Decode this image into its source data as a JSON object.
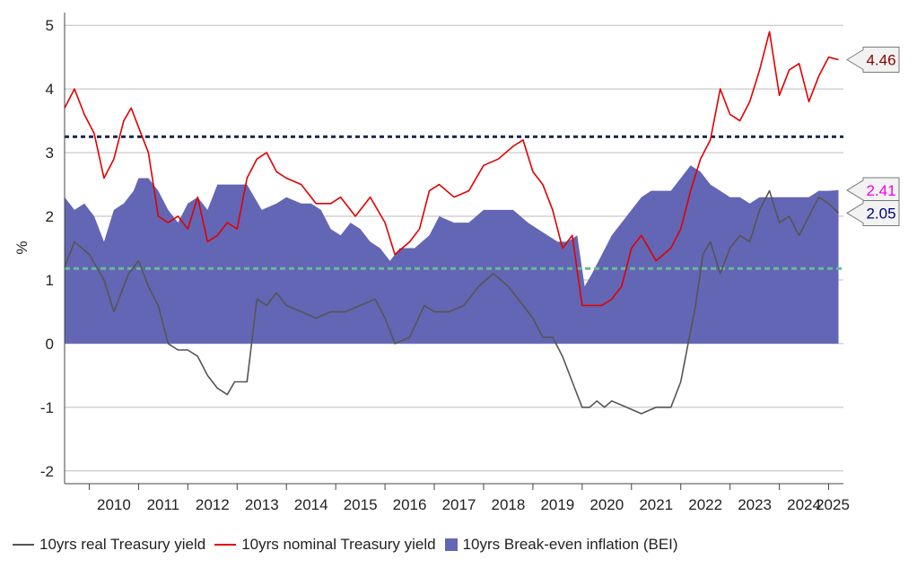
{
  "chart_data": {
    "type": "line",
    "ylabel": "%",
    "xlabel": "",
    "ylim": [
      -2.2,
      5.2
    ],
    "yticks": [
      -2,
      -1,
      0,
      1,
      2,
      3,
      4,
      5
    ],
    "xlim": [
      2009.5,
      2025.3
    ],
    "x_tick_labels": [
      "2010",
      "2011",
      "2012",
      "2013",
      "2014",
      "2015",
      "2016",
      "2017",
      "2018",
      "2019",
      "2020",
      "2021",
      "2022",
      "2023",
      "2024",
      "2025"
    ],
    "grid": "horizontal",
    "legend_position": "bottom",
    "series": [
      {
        "name": "10yrs real Treasury yield",
        "kind": "line",
        "color": "#555555",
        "x": [
          2009.5,
          2009.7,
          2010.0,
          2010.3,
          2010.5,
          2010.8,
          2011.0,
          2011.2,
          2011.4,
          2011.6,
          2011.8,
          2012.0,
          2012.2,
          2012.4,
          2012.6,
          2012.8,
          2012.95,
          2013.2,
          2013.4,
          2013.6,
          2013.8,
          2014.0,
          2014.3,
          2014.6,
          2014.9,
          2015.2,
          2015.5,
          2015.8,
          2016.0,
          2016.2,
          2016.5,
          2016.8,
          2017.0,
          2017.3,
          2017.6,
          2017.9,
          2018.2,
          2018.5,
          2018.8,
          2019.0,
          2019.2,
          2019.4,
          2019.6,
          2019.8,
          2020.0,
          2020.15,
          2020.3,
          2020.45,
          2020.6,
          2020.9,
          2021.2,
          2021.5,
          2021.8,
          2022.0,
          2022.15,
          2022.3,
          2022.45,
          2022.6,
          2022.8,
          2023.0,
          2023.2,
          2023.4,
          2023.6,
          2023.8,
          2024.0,
          2024.2,
          2024.4,
          2024.6,
          2024.8,
          2025.0,
          2025.2
        ],
        "values": [
          1.2,
          1.6,
          1.4,
          1.0,
          0.5,
          1.1,
          1.3,
          0.9,
          0.6,
          0.0,
          -0.1,
          -0.1,
          -0.2,
          -0.5,
          -0.7,
          -0.8,
          -0.6,
          -0.6,
          0.7,
          0.6,
          0.8,
          0.6,
          0.5,
          0.4,
          0.5,
          0.5,
          0.6,
          0.7,
          0.4,
          0.0,
          0.1,
          0.6,
          0.5,
          0.5,
          0.6,
          0.9,
          1.1,
          0.9,
          0.6,
          0.4,
          0.1,
          0.1,
          -0.2,
          -0.6,
          -1.0,
          -1.0,
          -0.9,
          -1.0,
          -0.9,
          -1.0,
          -1.1,
          -1.0,
          -1.0,
          -0.6,
          0.0,
          0.6,
          1.4,
          1.6,
          1.1,
          1.5,
          1.7,
          1.6,
          2.1,
          2.4,
          1.9,
          2.0,
          1.7,
          2.0,
          2.3,
          2.2,
          2.05
        ]
      },
      {
        "name": "10yrs nominal Treasury yield",
        "kind": "line",
        "color": "#e00000",
        "x": [
          2009.5,
          2009.7,
          2009.9,
          2010.1,
          2010.3,
          2010.5,
          2010.7,
          2010.85,
          2011.0,
          2011.2,
          2011.4,
          2011.6,
          2011.8,
          2012.0,
          2012.2,
          2012.4,
          2012.6,
          2012.8,
          2013.0,
          2013.2,
          2013.4,
          2013.6,
          2013.8,
          2014.0,
          2014.3,
          2014.6,
          2014.9,
          2015.1,
          2015.4,
          2015.7,
          2016.0,
          2016.2,
          2016.5,
          2016.7,
          2016.9,
          2017.1,
          2017.4,
          2017.7,
          2018.0,
          2018.3,
          2018.6,
          2018.8,
          2019.0,
          2019.2,
          2019.4,
          2019.6,
          2019.8,
          2020.0,
          2020.2,
          2020.4,
          2020.6,
          2020.8,
          2021.0,
          2021.2,
          2021.5,
          2021.8,
          2022.0,
          2022.2,
          2022.4,
          2022.6,
          2022.8,
          2023.0,
          2023.2,
          2023.4,
          2023.6,
          2023.8,
          2024.0,
          2024.2,
          2024.4,
          2024.6,
          2024.8,
          2025.0,
          2025.2
        ],
        "values": [
          3.7,
          4.0,
          3.6,
          3.3,
          2.6,
          2.9,
          3.5,
          3.7,
          3.4,
          3.0,
          2.0,
          1.9,
          2.0,
          1.8,
          2.3,
          1.6,
          1.7,
          1.9,
          1.8,
          2.6,
          2.9,
          3.0,
          2.7,
          2.6,
          2.5,
          2.2,
          2.2,
          2.3,
          2.0,
          2.3,
          1.9,
          1.4,
          1.6,
          1.8,
          2.4,
          2.5,
          2.3,
          2.4,
          2.8,
          2.9,
          3.1,
          3.2,
          2.7,
          2.5,
          2.1,
          1.5,
          1.7,
          0.6,
          0.6,
          0.6,
          0.7,
          0.9,
          1.5,
          1.7,
          1.3,
          1.5,
          1.8,
          2.4,
          2.9,
          3.2,
          4.0,
          3.6,
          3.5,
          3.8,
          4.3,
          4.9,
          3.9,
          4.3,
          4.4,
          3.8,
          4.2,
          4.5,
          4.46
        ]
      },
      {
        "name": "10yrs Break-even inflation (BEI)",
        "kind": "area",
        "color": "#6366b4",
        "x": [
          2009.5,
          2009.7,
          2009.9,
          2010.1,
          2010.3,
          2010.5,
          2010.7,
          2010.9,
          2011.0,
          2011.2,
          2011.4,
          2011.6,
          2011.8,
          2012.0,
          2012.2,
          2012.4,
          2012.6,
          2012.8,
          2012.95,
          2013.2,
          2013.5,
          2013.8,
          2014.0,
          2014.3,
          2014.5,
          2014.7,
          2014.9,
          2015.1,
          2015.3,
          2015.5,
          2015.7,
          2015.9,
          2016.1,
          2016.3,
          2016.6,
          2016.9,
          2017.1,
          2017.4,
          2017.7,
          2018.0,
          2018.3,
          2018.6,
          2018.9,
          2019.1,
          2019.3,
          2019.5,
          2019.7,
          2019.9,
          2020.05,
          2020.2,
          2020.4,
          2020.6,
          2020.8,
          2021.0,
          2021.2,
          2021.4,
          2021.6,
          2021.8,
          2022.0,
          2022.2,
          2022.4,
          2022.6,
          2022.8,
          2023.0,
          2023.2,
          2023.4,
          2023.6,
          2023.8,
          2024.0,
          2024.2,
          2024.4,
          2024.6,
          2024.8,
          2025.0,
          2025.2
        ],
        "values": [
          2.3,
          2.1,
          2.2,
          2.0,
          1.6,
          2.1,
          2.2,
          2.4,
          2.6,
          2.6,
          2.4,
          2.1,
          1.9,
          2.2,
          2.3,
          2.1,
          2.5,
          2.5,
          2.5,
          2.5,
          2.1,
          2.2,
          2.3,
          2.2,
          2.2,
          2.1,
          1.8,
          1.7,
          1.9,
          1.8,
          1.6,
          1.5,
          1.3,
          1.5,
          1.5,
          1.7,
          2.0,
          1.9,
          1.9,
          2.1,
          2.1,
          2.1,
          1.9,
          1.8,
          1.7,
          1.6,
          1.6,
          1.7,
          0.9,
          1.1,
          1.4,
          1.7,
          1.9,
          2.1,
          2.3,
          2.4,
          2.4,
          2.4,
          2.6,
          2.8,
          2.7,
          2.5,
          2.4,
          2.3,
          2.3,
          2.2,
          2.3,
          2.3,
          2.3,
          2.3,
          2.3,
          2.3,
          2.4,
          2.4,
          2.41
        ]
      }
    ],
    "reference_lines": [
      {
        "value": 3.25,
        "color": "#1b2a55",
        "style": "dotted"
      },
      {
        "value": 1.18,
        "color": "#6bb89a",
        "style": "dashed"
      }
    ],
    "callouts": [
      {
        "label": "4.46",
        "value": 4.46,
        "text_color": "#8b0000"
      },
      {
        "label": "2.41",
        "value": 2.41,
        "text_color": "#ee00ee"
      },
      {
        "label": "2.05",
        "value": 2.05,
        "text_color": "#000080"
      }
    ]
  }
}
